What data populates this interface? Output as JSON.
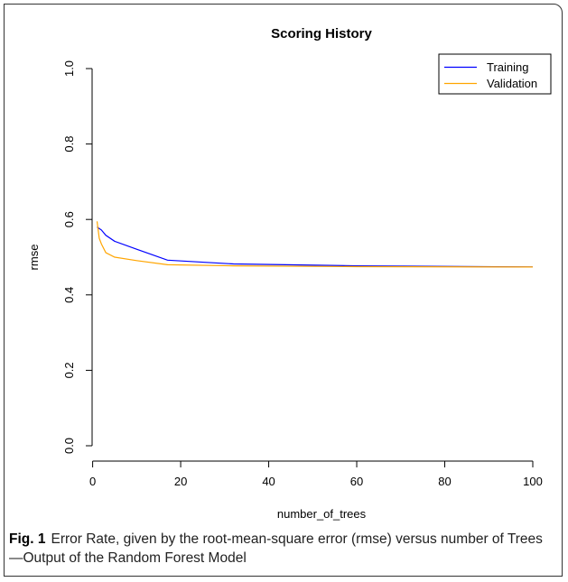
{
  "chart_data": {
    "type": "line",
    "title": "Scoring History",
    "xlabel": "number_of_trees",
    "ylabel": "rmse",
    "xlim": [
      0,
      100
    ],
    "ylim": [
      0.0,
      1.0
    ],
    "x_ticks": [
      0,
      20,
      40,
      60,
      80,
      100
    ],
    "y_ticks": [
      0.0,
      0.2,
      0.4,
      0.6,
      0.8,
      1.0
    ],
    "y_tick_labels": [
      "0.0",
      "0.2",
      "0.4",
      "0.6",
      "0.8",
      "1.0"
    ],
    "legend_position": "top-right",
    "grid": false,
    "series": [
      {
        "name": "Training",
        "color": "#0000ff",
        "x": [
          1,
          2,
          3,
          5,
          10,
          17,
          32,
          60,
          100
        ],
        "values": [
          0.58,
          0.572,
          0.558,
          0.542,
          0.521,
          0.492,
          0.482,
          0.477,
          0.474
        ]
      },
      {
        "name": "Validation",
        "color": "#ffa500",
        "x": [
          1,
          1.5,
          2,
          3,
          5,
          10,
          17,
          32,
          60,
          100
        ],
        "values": [
          0.595,
          0.55,
          0.535,
          0.512,
          0.5,
          0.491,
          0.48,
          0.477,
          0.475,
          0.474
        ]
      }
    ]
  },
  "caption": {
    "label": "Fig. 1",
    "text": "Error Rate, given by the root-mean-square error (rmse) versus number of Trees—Output of the Random Forest Model"
  }
}
